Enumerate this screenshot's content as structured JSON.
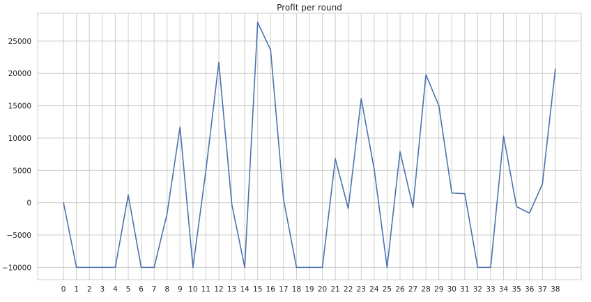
{
  "chart_data": {
    "type": "line",
    "title": "Profit per round",
    "xlabel": "",
    "ylabel": "",
    "x": [
      0,
      1,
      2,
      3,
      4,
      5,
      6,
      7,
      8,
      9,
      10,
      11,
      12,
      13,
      14,
      15,
      16,
      17,
      18,
      19,
      20,
      21,
      22,
      23,
      24,
      25,
      26,
      27,
      28,
      29,
      30,
      31,
      32,
      33,
      34,
      35,
      36,
      37,
      38
    ],
    "series": [
      {
        "values": [
          0,
          -10000,
          -10000,
          -10000,
          -10000,
          1200,
          -10000,
          -10000,
          -1700,
          11700,
          -10000,
          5000,
          21700,
          -200,
          -10000,
          27900,
          23600,
          500,
          -10000,
          -10000,
          -10000,
          6800,
          -900,
          16100,
          5200,
          -10000,
          7900,
          -700,
          19800,
          15000,
          1500,
          1400,
          -10000,
          -10000,
          10300,
          -600,
          -1600,
          2900,
          20700
        ],
        "color": "#4c72b0"
      }
    ],
    "xlim": [
      -2.0,
      40.0
    ],
    "ylim": [
      -11900,
      29300
    ],
    "yticks": [
      -10000,
      -5000,
      0,
      5000,
      10000,
      15000,
      20000,
      25000
    ],
    "grid": true,
    "legend": "none"
  }
}
